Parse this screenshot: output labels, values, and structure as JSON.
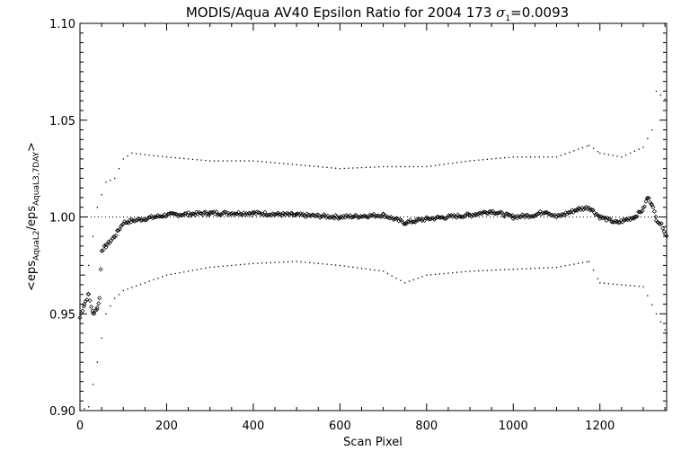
{
  "chart_data": {
    "type": "scatter",
    "title": {
      "main": "MODIS/Aqua AV40 Epsilon Ratio for 2004 173 ",
      "sigma_symbol": "σ",
      "sigma_sub": "1",
      "sigma_value": "=0.0093"
    },
    "xlabel": "Scan Pixel",
    "ylabel": {
      "open": "<eps",
      "sub1": "AquaL2",
      "mid": "/eps",
      "sub2": "AquaL3,7DAY",
      "close": ">"
    },
    "xlim": [
      0,
      1354
    ],
    "ylim": [
      0.9,
      1.1
    ],
    "xticks": [
      0,
      200,
      400,
      600,
      800,
      1000,
      1200
    ],
    "xtick_labels": [
      "0",
      "200",
      "400",
      "600",
      "800",
      "1000",
      "1200"
    ],
    "yticks": [
      0.9,
      0.95,
      1.0,
      1.05,
      1.1
    ],
    "ytick_labels": [
      "0.90",
      "0.95",
      "1.00",
      "1.05",
      "1.10"
    ],
    "reference_line": 1.0,
    "grid": false,
    "series": [
      {
        "role": "mean",
        "marker": "diamond",
        "color": "#000000",
        "points": [
          [
            0,
            0.948
          ],
          [
            10,
            0.955
          ],
          [
            20,
            0.96
          ],
          [
            30,
            0.95
          ],
          [
            40,
            0.953
          ],
          [
            45,
            0.958
          ],
          [
            50,
            0.983
          ],
          [
            60,
            0.985
          ],
          [
            80,
            0.99
          ],
          [
            100,
            0.997
          ],
          [
            120,
            0.998
          ],
          [
            200,
            1.001
          ],
          [
            300,
            1.002
          ],
          [
            400,
            1.002
          ],
          [
            500,
            1.001
          ],
          [
            600,
            1.0
          ],
          [
            700,
            1.001
          ],
          [
            750,
            0.997
          ],
          [
            800,
            0.999
          ],
          [
            900,
            1.001
          ],
          [
            950,
            1.003
          ],
          [
            1000,
            1.0
          ],
          [
            1050,
            1.001
          ],
          [
            1075,
            1.003
          ],
          [
            1100,
            1.0
          ],
          [
            1150,
            1.004
          ],
          [
            1175,
            1.005
          ],
          [
            1200,
            1.0
          ],
          [
            1240,
            0.997
          ],
          [
            1280,
            1.0
          ],
          [
            1300,
            1.004
          ],
          [
            1310,
            1.01
          ],
          [
            1320,
            1.007
          ],
          [
            1330,
            0.999
          ],
          [
            1345,
            0.995
          ],
          [
            1354,
            0.99
          ]
        ]
      },
      {
        "role": "upper",
        "marker": "dot",
        "color": "#000000",
        "points": [
          [
            0,
            0.965
          ],
          [
            20,
            0.975
          ],
          [
            40,
            1.005
          ],
          [
            60,
            1.018
          ],
          [
            80,
            1.02
          ],
          [
            100,
            1.03
          ],
          [
            120,
            1.033
          ],
          [
            200,
            1.031
          ],
          [
            300,
            1.029
          ],
          [
            400,
            1.029
          ],
          [
            500,
            1.027
          ],
          [
            600,
            1.025
          ],
          [
            700,
            1.026
          ],
          [
            800,
            1.026
          ],
          [
            900,
            1.029
          ],
          [
            1000,
            1.031
          ],
          [
            1100,
            1.031
          ],
          [
            1175,
            1.037
          ],
          [
            1200,
            1.033
          ],
          [
            1250,
            1.031
          ],
          [
            1300,
            1.036
          ],
          [
            1320,
            1.045
          ],
          [
            1330,
            1.065
          ],
          [
            1354,
            1.06
          ]
        ]
      },
      {
        "role": "lower",
        "marker": "dot",
        "color": "#000000",
        "points": [
          [
            0,
            0.9
          ],
          [
            20,
            0.902
          ],
          [
            40,
            0.925
          ],
          [
            60,
            0.95
          ],
          [
            80,
            0.958
          ],
          [
            100,
            0.962
          ],
          [
            150,
            0.966
          ],
          [
            200,
            0.97
          ],
          [
            300,
            0.974
          ],
          [
            400,
            0.976
          ],
          [
            500,
            0.977
          ],
          [
            600,
            0.975
          ],
          [
            700,
            0.972
          ],
          [
            750,
            0.966
          ],
          [
            800,
            0.97
          ],
          [
            900,
            0.972
          ],
          [
            1000,
            0.973
          ],
          [
            1100,
            0.974
          ],
          [
            1175,
            0.977
          ],
          [
            1200,
            0.966
          ],
          [
            1250,
            0.965
          ],
          [
            1300,
            0.964
          ],
          [
            1330,
            0.95
          ],
          [
            1354,
            0.94
          ]
        ]
      }
    ]
  }
}
